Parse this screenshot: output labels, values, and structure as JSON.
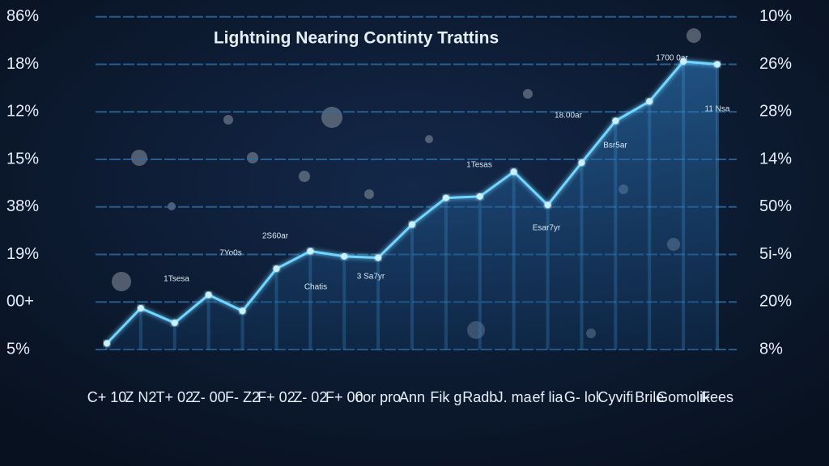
{
  "chart_data": {
    "type": "line",
    "title": "Lightning Nearing Continty Trattins",
    "categories": [
      "C+ 10",
      "Z N2",
      "T+ 02",
      "Z- 00",
      "F- Z2",
      "F+ 02",
      "Z- 02",
      "F+ 00",
      "cor pro",
      "Ann",
      "Fik g",
      "Radb",
      "J. ma",
      "ef lia",
      "G- lol",
      "Cyvifi",
      "Brile",
      "Gomolik",
      "Fees"
    ],
    "series": [
      {
        "name": "Trattins",
        "color": "#6fd6ff",
        "values": [
          0.13,
          0.87,
          0.56,
          1.15,
          0.81,
          1.7,
          2.07,
          1.96,
          1.93,
          2.63,
          3.19,
          3.22,
          3.74,
          3.04,
          3.93,
          4.81,
          5.22,
          6.06,
          6.0
        ]
      }
    ],
    "annotations": [
      "1Tsesa",
      "7Yo0s",
      "2S60ar",
      "Chatis",
      "3 Sa7yr",
      "1Tesas",
      "Esar7yr",
      "18.00ar",
      "Bsr5ar",
      "1700 0ar",
      "11 Nsa"
    ],
    "ylim": [
      0,
      7.2
    ],
    "yticks": [
      {
        "value": 0,
        "label": "5%"
      },
      {
        "value": 1,
        "label": "00+"
      },
      {
        "value": 2,
        "label": "19%"
      },
      {
        "value": 3,
        "label": "38%"
      },
      {
        "value": 4,
        "label": "15%"
      },
      {
        "value": 5,
        "label": "12%"
      },
      {
        "value": 6,
        "label": "18%"
      },
      {
        "value": 7,
        "label": "86%"
      }
    ],
    "y2lim": [
      0,
      7.2
    ],
    "y2ticks": [
      {
        "value": 0,
        "label": "8%"
      },
      {
        "value": 1,
        "label": "20%"
      },
      {
        "value": 2,
        "label": "5i-%"
      },
      {
        "value": 3,
        "label": "50%"
      },
      {
        "value": 4,
        "label": "14%"
      },
      {
        "value": 5,
        "label": "28%"
      },
      {
        "value": 6,
        "label": "26%"
      },
      {
        "value": 7,
        "label": "10%"
      }
    ],
    "grid": true
  }
}
